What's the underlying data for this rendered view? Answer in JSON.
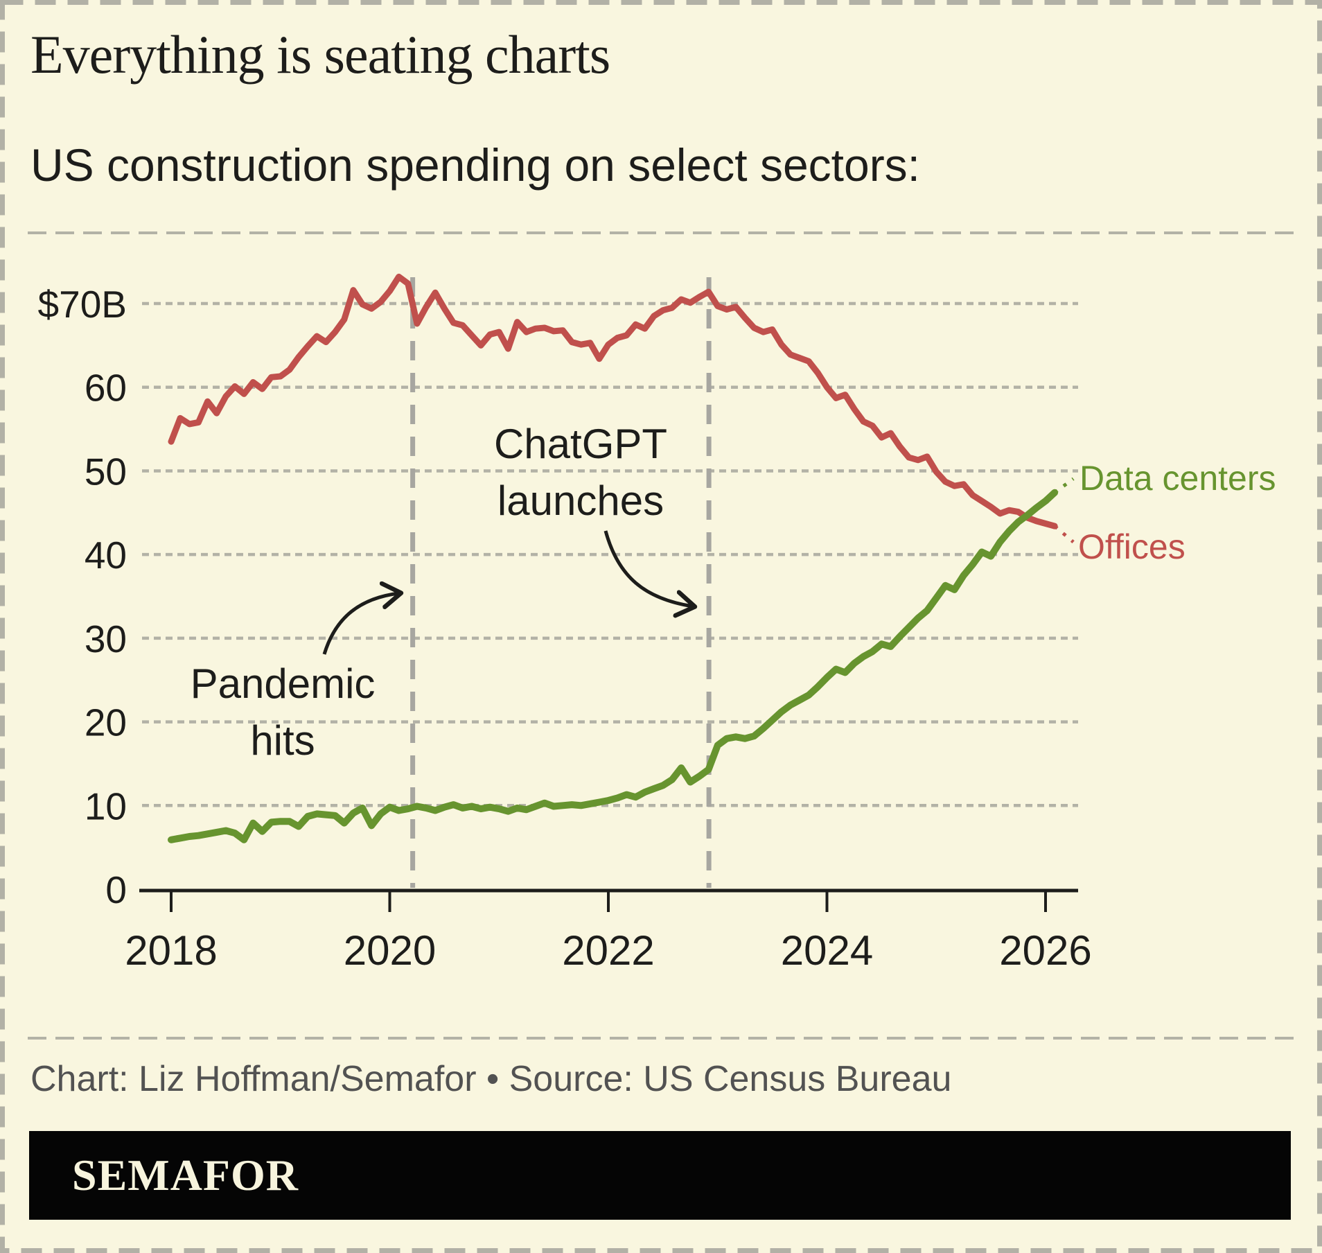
{
  "page": {
    "background": "#f9f6df",
    "border_color": "#b2b1a6"
  },
  "header": {
    "title": "Everything is seating charts",
    "subtitle": "US construction spending on select sectors:"
  },
  "footer": {
    "credit": "Chart: Liz Hoffman/Semafor • Source: US Census Bureau",
    "logo_text": "SEMAFOR"
  },
  "chart_data": {
    "type": "line",
    "title": "US construction spending on select sectors",
    "unit": "USD billions",
    "frequency": "monthly",
    "x_start": "2018-01",
    "x_end": "2026-02",
    "ylim": [
      0,
      75
    ],
    "grid": "dotted horizontal lines every $10B",
    "legend_position": "right-end-labels",
    "yticks": [
      {
        "value": 70,
        "label": "$70B"
      },
      {
        "value": 60,
        "label": "60"
      },
      {
        "value": 50,
        "label": "50"
      },
      {
        "value": 40,
        "label": "40"
      },
      {
        "value": 30,
        "label": "30"
      },
      {
        "value": 20,
        "label": "20"
      },
      {
        "value": 10,
        "label": "10"
      },
      {
        "value": 0,
        "label": "0"
      }
    ],
    "xticks": [
      {
        "value": 2018,
        "label": "2018"
      },
      {
        "value": 2020,
        "label": "2020"
      },
      {
        "value": 2022,
        "label": "2022"
      },
      {
        "value": 2024,
        "label": "2024"
      },
      {
        "value": 2026,
        "label": "2026"
      }
    ],
    "series": [
      {
        "name": "Offices",
        "color": "#c0504c",
        "values": [
          53.5,
          56.3,
          55.6,
          55.8,
          58.3,
          56.9,
          58.9,
          60.1,
          59.2,
          60.6,
          59.8,
          61.2,
          61.3,
          62.1,
          63.6,
          64.9,
          66.1,
          65.4,
          66.6,
          68.1,
          71.6,
          69.9,
          69.4,
          70.2,
          71.5,
          73.2,
          72.4,
          67.6,
          69.6,
          71.3,
          69.4,
          67.7,
          67.4,
          66.2,
          65.0,
          66.3,
          66.6,
          64.6,
          67.8,
          66.6,
          67.0,
          67.1,
          66.7,
          66.8,
          65.4,
          65.1,
          65.3,
          63.4,
          65.1,
          65.9,
          66.2,
          67.5,
          67.0,
          68.5,
          69.2,
          69.5,
          70.5,
          70.1,
          70.8,
          71.4,
          69.7,
          69.3,
          69.6,
          68.3,
          67.1,
          66.6,
          66.9,
          65.1,
          63.9,
          63.5,
          63.1,
          61.7,
          60.0,
          58.7,
          59.1,
          57.4,
          55.9,
          55.4,
          54.0,
          54.5,
          52.9,
          51.6,
          51.3,
          51.7,
          49.9,
          48.7,
          48.2,
          48.4,
          47.1,
          46.4,
          45.7,
          44.9,
          45.3,
          45.1,
          44.4,
          44.0,
          43.7,
          43.4
        ]
      },
      {
        "name": "Data centers",
        "color": "#67942f",
        "values": [
          5.9,
          6.1,
          6.3,
          6.4,
          6.6,
          6.8,
          7.0,
          6.7,
          5.9,
          7.9,
          6.9,
          8.0,
          8.1,
          8.1,
          7.5,
          8.7,
          9.0,
          8.9,
          8.8,
          7.9,
          9.1,
          9.7,
          7.6,
          9.0,
          9.8,
          9.4,
          9.6,
          9.9,
          9.7,
          9.4,
          9.8,
          10.1,
          9.7,
          9.9,
          9.6,
          9.8,
          9.6,
          9.3,
          9.7,
          9.5,
          9.9,
          10.3,
          9.9,
          10.0,
          10.1,
          10.0,
          10.2,
          10.4,
          10.6,
          10.9,
          11.3,
          11.0,
          11.6,
          12.0,
          12.4,
          13.1,
          14.5,
          12.8,
          13.5,
          14.3,
          17.2,
          18.0,
          18.2,
          18.0,
          18.3,
          19.2,
          20.2,
          21.2,
          22.0,
          22.6,
          23.2,
          24.2,
          25.3,
          26.3,
          25.9,
          27.0,
          27.8,
          28.4,
          29.3,
          29.0,
          30.2,
          31.3,
          32.4,
          33.3,
          34.8,
          36.3,
          35.8,
          37.5,
          38.8,
          40.3,
          39.8,
          41.5,
          42.8,
          43.9,
          44.7,
          45.6,
          46.4,
          47.4
        ]
      }
    ],
    "annotations": [
      {
        "text": "Pandemic hits",
        "year": 2020.21
      },
      {
        "text": "ChatGPT launches",
        "year": 2022.92
      }
    ],
    "colors": {
      "grid": "#b3b2a6",
      "event_line": "#a7a6a0",
      "axis": "#1d1d1b"
    }
  }
}
